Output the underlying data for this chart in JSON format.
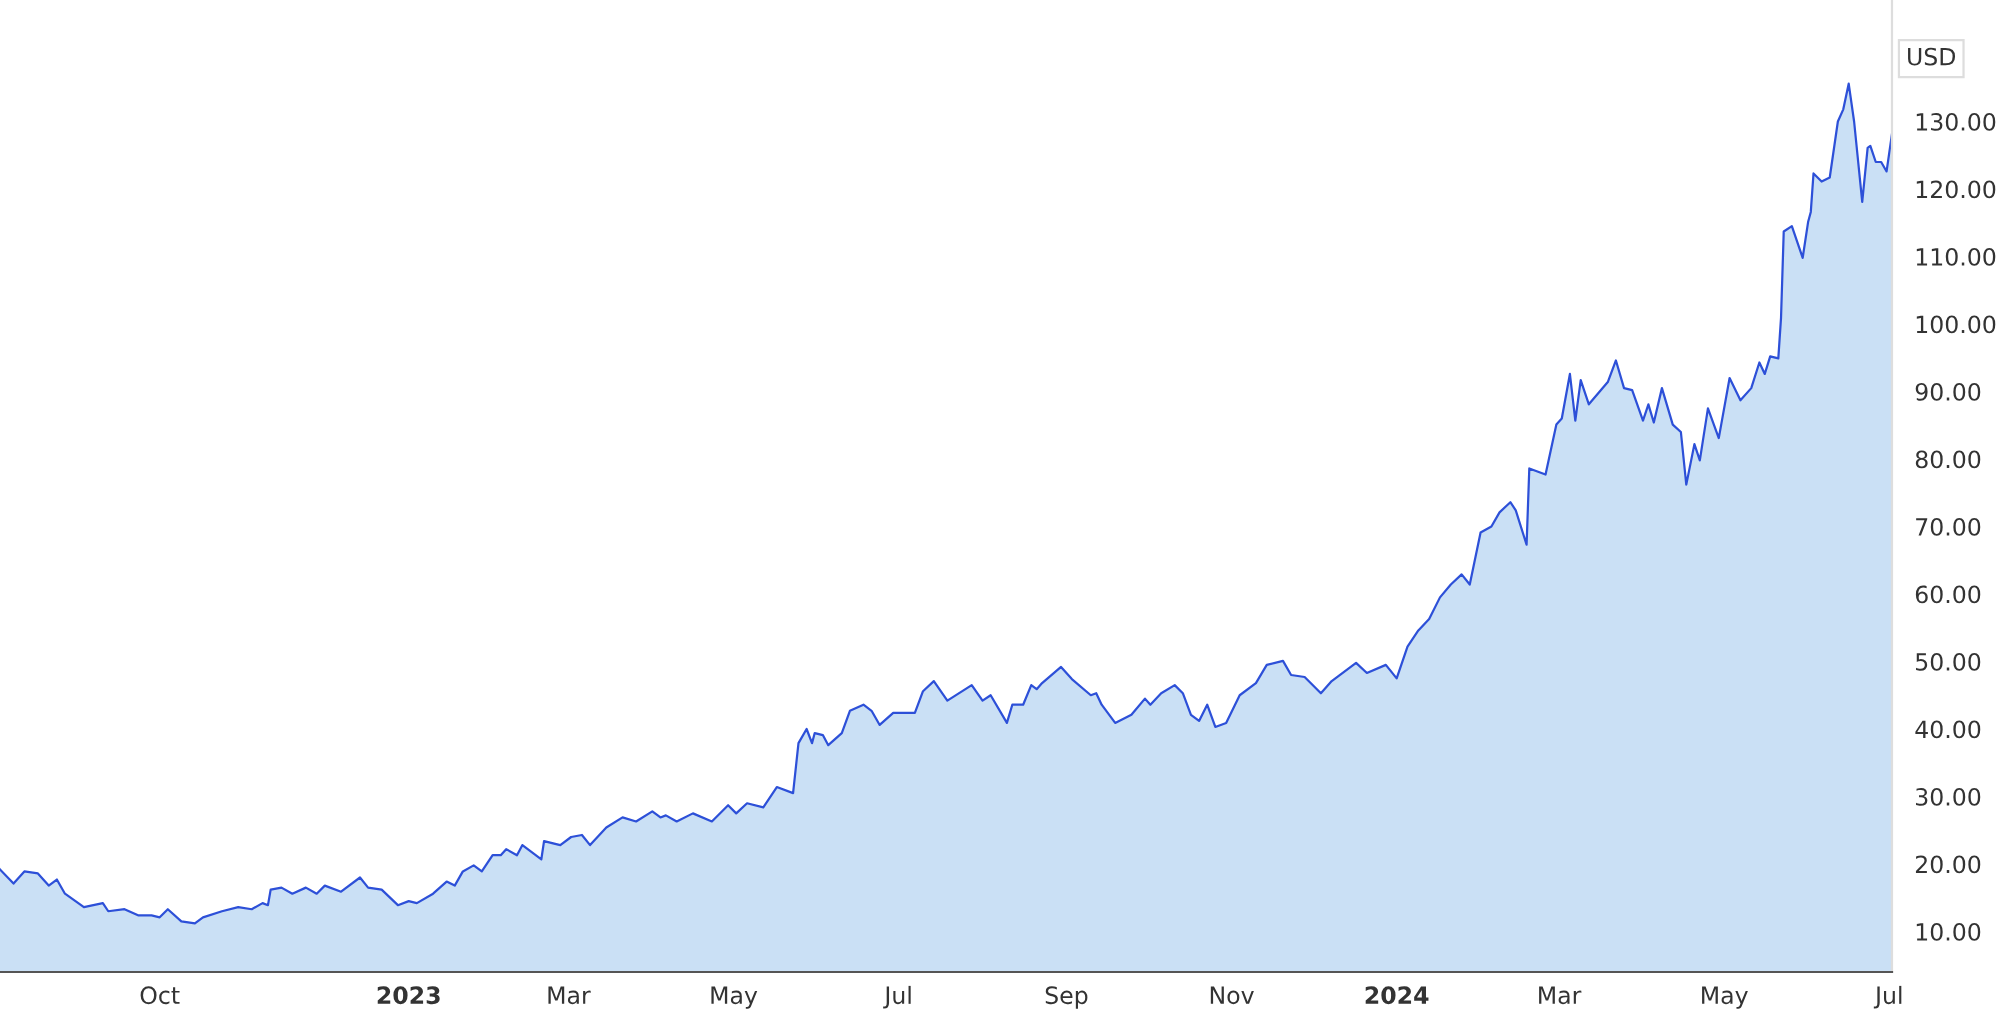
{
  "chart_data": {
    "type": "area",
    "x": [
      "2022-08-03",
      "2022-08-08",
      "2022-08-12",
      "2022-08-17",
      "2022-08-21",
      "2022-08-24",
      "2022-08-27",
      "2022-09-03",
      "2022-09-10",
      "2022-09-12",
      "2022-09-18",
      "2022-09-23",
      "2022-09-28",
      "2022-10-01",
      "2022-10-04",
      "2022-10-09",
      "2022-10-14",
      "2022-10-17",
      "2022-10-24",
      "2022-10-30",
      "2022-11-04",
      "2022-11-08",
      "2022-11-10",
      "2022-11-11",
      "2022-11-15",
      "2022-11-19",
      "2022-11-24",
      "2022-11-28",
      "2022-12-01",
      "2022-12-07",
      "2022-12-14",
      "2022-12-17",
      "2022-12-22",
      "2022-12-28",
      "2023-01-01",
      "2023-01-04",
      "2023-01-10",
      "2023-01-15",
      "2023-01-18",
      "2023-01-21",
      "2023-01-25",
      "2023-01-28",
      "2023-02-01",
      "2023-02-04",
      "2023-02-06",
      "2023-02-10",
      "2023-02-12",
      "2023-02-19",
      "2023-02-20",
      "2023-02-26",
      "2023-03-02",
      "2023-03-06",
      "2023-03-09",
      "2023-03-15",
      "2023-03-21",
      "2023-03-26",
      "2023-04-01",
      "2023-04-04",
      "2023-04-06",
      "2023-04-10",
      "2023-04-16",
      "2023-04-23",
      "2023-04-29",
      "2023-05-02",
      "2023-05-06",
      "2023-05-12",
      "2023-05-17",
      "2023-05-23",
      "2023-05-25",
      "2023-05-28",
      "2023-05-30",
      "2023-05-31",
      "2023-06-03",
      "2023-06-05",
      "2023-06-10",
      "2023-06-13",
      "2023-06-18",
      "2023-06-21",
      "2023-06-24",
      "2023-06-29",
      "2023-07-07",
      "2023-07-10",
      "2023-07-14",
      "2023-07-19",
      "2023-07-28",
      "2023-08-01",
      "2023-08-04",
      "2023-08-10",
      "2023-08-12",
      "2023-08-16",
      "2023-08-19",
      "2023-08-21",
      "2023-08-23",
      "2023-08-30",
      "2023-09-03",
      "2023-09-10",
      "2023-09-12",
      "2023-09-14",
      "2023-09-19",
      "2023-09-25",
      "2023-09-30",
      "2023-10-02",
      "2023-10-06",
      "2023-10-11",
      "2023-10-14",
      "2023-10-17",
      "2023-10-20",
      "2023-10-23",
      "2023-10-26",
      "2023-10-30",
      "2023-11-04",
      "2023-11-10",
      "2023-11-14",
      "2023-11-20",
      "2023-11-23",
      "2023-11-28",
      "2023-12-04",
      "2023-12-08",
      "2023-12-17",
      "2023-12-21",
      "2023-12-28",
      "2024-01-01",
      "2024-01-05",
      "2024-01-09",
      "2024-01-13",
      "2024-01-17",
      "2024-01-21",
      "2024-01-25",
      "2024-01-28",
      "2024-02-01",
      "2024-02-05",
      "2024-02-08",
      "2024-02-12",
      "2024-02-14",
      "2024-02-18",
      "2024-02-19",
      "2024-02-25",
      "2024-02-29",
      "2024-03-02",
      "2024-03-05",
      "2024-03-07",
      "2024-03-09",
      "2024-03-12",
      "2024-03-19",
      "2024-03-22",
      "2024-03-25",
      "2024-03-28",
      "2024-04-01",
      "2024-04-03",
      "2024-04-05",
      "2024-04-08",
      "2024-04-12",
      "2024-04-15",
      "2024-04-17",
      "2024-04-20",
      "2024-04-22",
      "2024-04-25",
      "2024-04-29",
      "2024-05-03",
      "2024-05-07",
      "2024-05-11",
      "2024-05-14",
      "2024-05-16",
      "2024-05-18",
      "2024-05-21",
      "2024-05-22",
      "2024-05-23",
      "2024-05-26",
      "2024-05-30",
      "2024-06-01",
      "2024-06-02",
      "2024-06-03",
      "2024-06-06",
      "2024-06-09",
      "2024-06-12",
      "2024-06-14",
      "2024-06-16",
      "2024-06-18",
      "2024-06-21",
      "2024-06-23",
      "2024-06-24",
      "2024-06-26",
      "2024-06-28",
      "2024-06-30",
      "2024-07-02"
    ],
    "series": [
      {
        "color": "#2d50d8",
        "values": [
          19.2,
          17.1,
          18.9,
          18.6,
          16.8,
          17.7,
          15.6,
          13.6,
          14.2,
          13.0,
          13.3,
          12.4,
          12.4,
          12.1,
          13.3,
          11.5,
          11.2,
          12.1,
          13.0,
          13.6,
          13.3,
          14.2,
          13.9,
          16.2,
          16.5,
          15.6,
          16.5,
          15.6,
          16.8,
          15.9,
          18.0,
          16.5,
          16.2,
          13.9,
          14.5,
          14.2,
          15.6,
          17.4,
          16.8,
          18.9,
          19.8,
          18.9,
          21.3,
          21.3,
          22.2,
          21.3,
          22.8,
          20.7,
          23.4,
          22.8,
          24.0,
          24.3,
          22.8,
          25.4,
          26.9,
          26.3,
          27.8,
          26.9,
          27.2,
          26.3,
          27.5,
          26.3,
          28.7,
          27.5,
          29.0,
          28.4,
          31.4,
          30.5,
          37.9,
          40.0,
          37.9,
          39.4,
          39.1,
          37.6,
          39.4,
          42.7,
          43.6,
          42.7,
          40.6,
          42.4,
          42.4,
          45.6,
          47.1,
          44.2,
          46.5,
          44.2,
          45.0,
          40.9,
          43.6,
          43.6,
          46.5,
          45.9,
          46.8,
          49.2,
          47.4,
          45.0,
          45.3,
          43.6,
          40.9,
          42.1,
          44.5,
          43.6,
          45.3,
          46.5,
          45.3,
          42.1,
          41.2,
          43.6,
          40.3,
          40.9,
          45.0,
          46.8,
          49.5,
          50.1,
          48.0,
          47.7,
          45.3,
          47.1,
          49.8,
          48.3,
          49.5,
          47.5,
          52.2,
          54.6,
          56.3,
          59.5,
          61.4,
          62.9,
          61.4,
          69.1,
          70.0,
          72.1,
          73.6,
          72.4,
          67.3,
          78.6,
          77.7,
          85.1,
          86.0,
          92.6,
          85.7,
          91.7,
          88.1,
          91.4,
          94.6,
          90.5,
          90.2,
          85.7,
          88.1,
          85.4,
          90.5,
          85.1,
          84.0,
          76.2,
          82.2,
          79.8,
          87.5,
          83.1,
          92.0,
          88.7,
          90.5,
          94.3,
          92.6,
          95.2,
          94.9,
          100.9,
          113.7,
          114.5,
          109.8,
          115.1,
          116.6,
          122.3,
          121.1,
          121.7,
          130.0,
          131.8,
          135.6,
          130.0,
          118.1,
          126.1,
          126.4,
          124.0,
          124.0,
          122.6,
          128.2
        ]
      }
    ],
    "xlim": [
      "2022-08-03",
      "2024-07-02"
    ],
    "xticks": [
      {
        "value": "2022-10-01",
        "label": "Oct"
      },
      {
        "value": "2023-01-01",
        "label": "2023"
      },
      {
        "value": "2023-03-01",
        "label": "Mar"
      },
      {
        "value": "2023-05-01",
        "label": "May"
      },
      {
        "value": "2023-07-01",
        "label": "Jul"
      },
      {
        "value": "2023-09-01",
        "label": "Sep"
      },
      {
        "value": "2023-11-01",
        "label": "Nov"
      },
      {
        "value": "2024-01-01",
        "label": "2024"
      },
      {
        "value": "2024-03-01",
        "label": "Mar"
      },
      {
        "value": "2024-05-01",
        "label": "May"
      },
      {
        "value": "2024-07-01",
        "label": "Jul"
      }
    ],
    "ylim": [
      4,
      148
    ],
    "yticks": [
      {
        "value": 10,
        "label": "10.00"
      },
      {
        "value": 20,
        "label": "20.00"
      },
      {
        "value": 30,
        "label": "30.00"
      },
      {
        "value": 40,
        "label": "40.00"
      },
      {
        "value": 50,
        "label": "50.00"
      },
      {
        "value": 60,
        "label": "60.00"
      },
      {
        "value": 70,
        "label": "70.00"
      },
      {
        "value": 80,
        "label": "80.00"
      },
      {
        "value": 90,
        "label": "90.00"
      },
      {
        "value": 100,
        "label": "100.00"
      },
      {
        "value": 110,
        "label": "110.00"
      },
      {
        "value": 120,
        "label": "120.00"
      },
      {
        "value": 130,
        "label": "130.00"
      }
    ],
    "annotations": [
      "USD"
    ],
    "grid": false,
    "legend": false
  }
}
